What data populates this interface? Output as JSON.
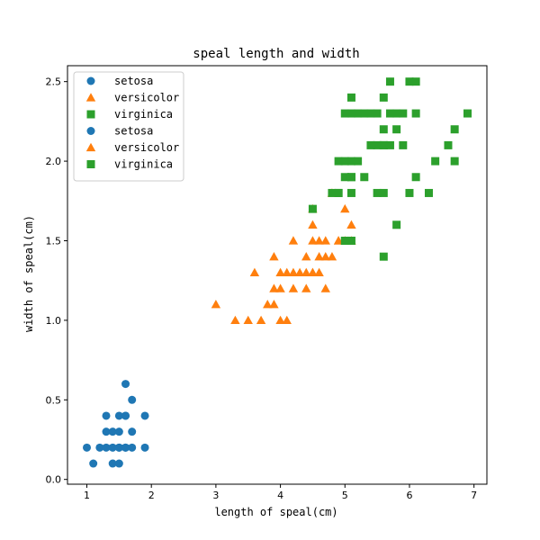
{
  "chart_data": {
    "type": "scatter",
    "title": "speal length and width",
    "xlabel": "length of speal(cm)",
    "ylabel": "width of speal(cm)",
    "xlim": [
      0.7,
      7.2
    ],
    "ylim": [
      -0.03,
      2.6
    ],
    "xticks": [
      1,
      2,
      3,
      4,
      5,
      6,
      7
    ],
    "yticks": [
      0.0,
      0.5,
      1.0,
      1.5,
      2.0,
      2.5
    ],
    "xtick_labels": [
      "1",
      "2",
      "3",
      "4",
      "5",
      "6",
      "7"
    ],
    "ytick_labels": [
      "0.0",
      "0.5",
      "1.0",
      "1.5",
      "2.0",
      "2.5"
    ],
    "grid": false,
    "legend": {
      "position": "upper-left",
      "entries": [
        {
          "label": "setosa",
          "marker": "circle",
          "color": "#1f77b4"
        },
        {
          "label": "versicolor",
          "marker": "triangle",
          "color": "#ff7f0e"
        },
        {
          "label": "virginica",
          "marker": "square",
          "color": "#2ca02c"
        },
        {
          "label": "setosa",
          "marker": "circle",
          "color": "#1f77b4"
        },
        {
          "label": "versicolor",
          "marker": "triangle",
          "color": "#ff7f0e"
        },
        {
          "label": "virginica",
          "marker": "square",
          "color": "#2ca02c"
        }
      ]
    },
    "series": [
      {
        "name": "setosa",
        "marker": "circle",
        "color": "#1f77b4",
        "x": [
          1.0,
          1.1,
          1.2,
          1.3,
          1.3,
          1.3,
          1.4,
          1.4,
          1.4,
          1.5,
          1.5,
          1.5,
          1.5,
          1.5,
          1.6,
          1.6,
          1.6,
          1.6,
          1.6,
          1.7,
          1.7,
          1.7,
          1.9,
          1.9
        ],
        "y": [
          0.2,
          0.1,
          0.2,
          0.2,
          0.3,
          0.4,
          0.1,
          0.2,
          0.3,
          0.1,
          0.2,
          0.3,
          0.4,
          0.2,
          0.2,
          0.4,
          0.6,
          0.2,
          0.4,
          0.2,
          0.3,
          0.5,
          0.2,
          0.4
        ]
      },
      {
        "name": "versicolor",
        "marker": "triangle",
        "color": "#ff7f0e",
        "x": [
          3.0,
          3.3,
          3.5,
          3.6,
          3.7,
          3.8,
          3.9,
          3.9,
          3.9,
          4.0,
          4.0,
          4.0,
          4.1,
          4.1,
          4.2,
          4.2,
          4.3,
          4.4,
          4.4,
          4.4,
          4.5,
          4.5,
          4.5,
          4.6,
          4.6,
          4.6,
          4.7,
          4.7,
          4.7,
          4.8,
          4.8,
          4.9,
          4.9,
          5.0,
          5.0,
          5.1,
          5.1,
          4.5,
          4.2,
          4.5
        ],
        "y": [
          1.1,
          1.0,
          1.0,
          1.3,
          1.0,
          1.1,
          1.1,
          1.2,
          1.4,
          1.0,
          1.2,
          1.3,
          1.0,
          1.3,
          1.3,
          1.5,
          1.3,
          1.2,
          1.3,
          1.4,
          1.3,
          1.5,
          1.6,
          1.3,
          1.4,
          1.5,
          1.2,
          1.4,
          1.5,
          1.4,
          1.8,
          1.5,
          1.5,
          1.7,
          1.5,
          1.6,
          1.5,
          1.7,
          1.2,
          1.3
        ]
      },
      {
        "name": "virginica",
        "marker": "square",
        "color": "#2ca02c",
        "x": [
          4.5,
          4.8,
          4.9,
          4.9,
          5.0,
          5.0,
          5.0,
          5.0,
          5.1,
          5.1,
          5.1,
          5.1,
          5.1,
          5.1,
          5.1,
          5.2,
          5.2,
          5.3,
          5.3,
          5.4,
          5.4,
          5.5,
          5.5,
          5.5,
          5.6,
          5.6,
          5.6,
          5.6,
          5.6,
          5.6,
          5.7,
          5.7,
          5.8,
          5.8,
          5.8,
          5.9,
          5.9,
          6.0,
          6.0,
          6.1,
          6.1,
          6.1,
          6.3,
          6.4,
          6.6,
          6.7,
          6.7,
          6.9,
          4.9,
          5.7
        ],
        "y": [
          1.7,
          1.8,
          1.8,
          2.0,
          1.5,
          1.9,
          2.0,
          2.3,
          1.5,
          1.8,
          1.9,
          2.0,
          2.3,
          2.4,
          1.9,
          2.0,
          2.3,
          1.9,
          2.3,
          2.1,
          2.3,
          1.8,
          2.1,
          2.3,
          1.4,
          1.8,
          2.1,
          2.2,
          2.4,
          2.1,
          2.1,
          2.5,
          1.6,
          2.2,
          2.3,
          2.1,
          2.3,
          1.8,
          2.5,
          1.9,
          2.3,
          2.5,
          1.8,
          2.0,
          2.1,
          2.0,
          2.2,
          2.3,
          1.8,
          2.3
        ]
      }
    ]
  }
}
